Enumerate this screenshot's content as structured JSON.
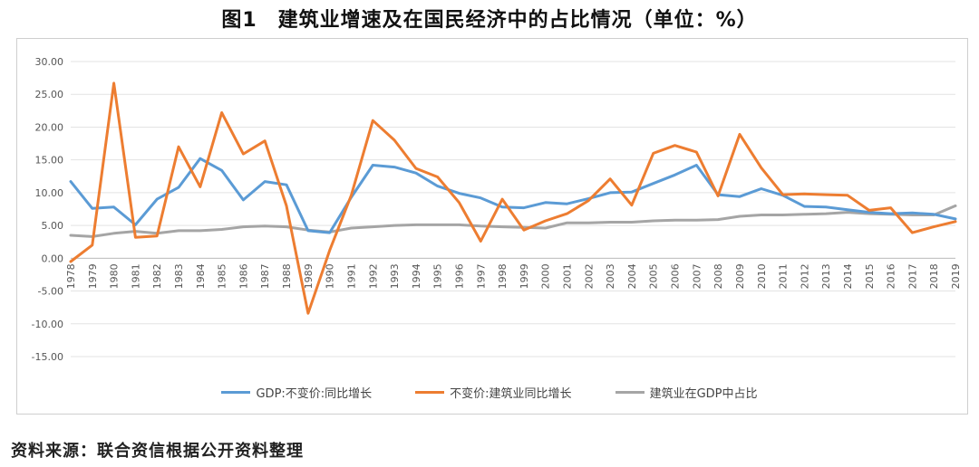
{
  "title": "图1　建筑业增速及在国民经济中的占比情况（单位：%）",
  "source": "资料来源：联合资信根据公开资料整理",
  "chart_data": {
    "type": "line",
    "x": [
      "1978",
      "1979",
      "1980",
      "1981",
      "1982",
      "1983",
      "1984",
      "1985",
      "1986",
      "1987",
      "1988",
      "1989",
      "1990",
      "1991",
      "1992",
      "1993",
      "1994",
      "1995",
      "1996",
      "1997",
      "1998",
      "1999",
      "2000",
      "2001",
      "2002",
      "2003",
      "2004",
      "2005",
      "2006",
      "2007",
      "2008",
      "2009",
      "2010",
      "2011",
      "2012",
      "2013",
      "2014",
      "2015",
      "2016",
      "2017",
      "2018",
      "2019"
    ],
    "ylim": [
      -15,
      30
    ],
    "yticks": [
      "30.00",
      "25.00",
      "20.00",
      "15.00",
      "10.00",
      "5.00",
      "0.00",
      "-5.00",
      "-10.00",
      "-15.00"
    ],
    "ytick_values": [
      30,
      25,
      20,
      15,
      10,
      5,
      0,
      -5,
      -10,
      -15
    ],
    "grid": true,
    "legend_position": "bottom",
    "series": [
      {
        "name": "GDP:不变价:同比增长",
        "color": "#5b9bd5",
        "values": [
          11.7,
          7.6,
          7.8,
          5.1,
          9.0,
          10.8,
          15.2,
          13.4,
          8.9,
          11.7,
          11.2,
          4.2,
          3.9,
          9.3,
          14.2,
          13.9,
          13.0,
          11.0,
          9.9,
          9.2,
          7.8,
          7.7,
          8.5,
          8.3,
          9.1,
          10.0,
          10.1,
          11.4,
          12.7,
          14.2,
          9.7,
          9.4,
          10.6,
          9.6,
          7.9,
          7.8,
          7.4,
          7.0,
          6.8,
          6.9,
          6.7,
          6.0
        ]
      },
      {
        "name": "不变价:建筑业同比增长",
        "color": "#ed7d31",
        "values": [
          -0.5,
          2.0,
          26.7,
          3.2,
          3.4,
          17.0,
          10.9,
          22.2,
          15.9,
          17.9,
          8.0,
          -8.4,
          1.2,
          9.6,
          21.0,
          18.0,
          13.7,
          12.4,
          8.5,
          2.6,
          9.0,
          4.3,
          5.7,
          6.8,
          8.8,
          12.1,
          8.1,
          16.0,
          17.2,
          16.2,
          9.5,
          18.9,
          13.8,
          9.7,
          9.8,
          9.7,
          9.6,
          7.3,
          7.7,
          3.9,
          4.8,
          5.6
        ]
      },
      {
        "name": "建筑业在GDP中占比",
        "color": "#a5a5a5",
        "values": [
          3.5,
          3.3,
          3.8,
          4.1,
          3.8,
          4.2,
          4.2,
          4.4,
          4.8,
          4.9,
          4.8,
          4.3,
          4.0,
          4.6,
          4.8,
          5.0,
          5.1,
          5.1,
          5.1,
          4.9,
          4.8,
          4.7,
          4.6,
          5.4,
          5.4,
          5.5,
          5.5,
          5.7,
          5.8,
          5.8,
          5.9,
          6.4,
          6.6,
          6.6,
          6.7,
          6.8,
          7.0,
          6.8,
          6.7,
          6.6,
          6.6,
          8.0
        ]
      }
    ]
  }
}
